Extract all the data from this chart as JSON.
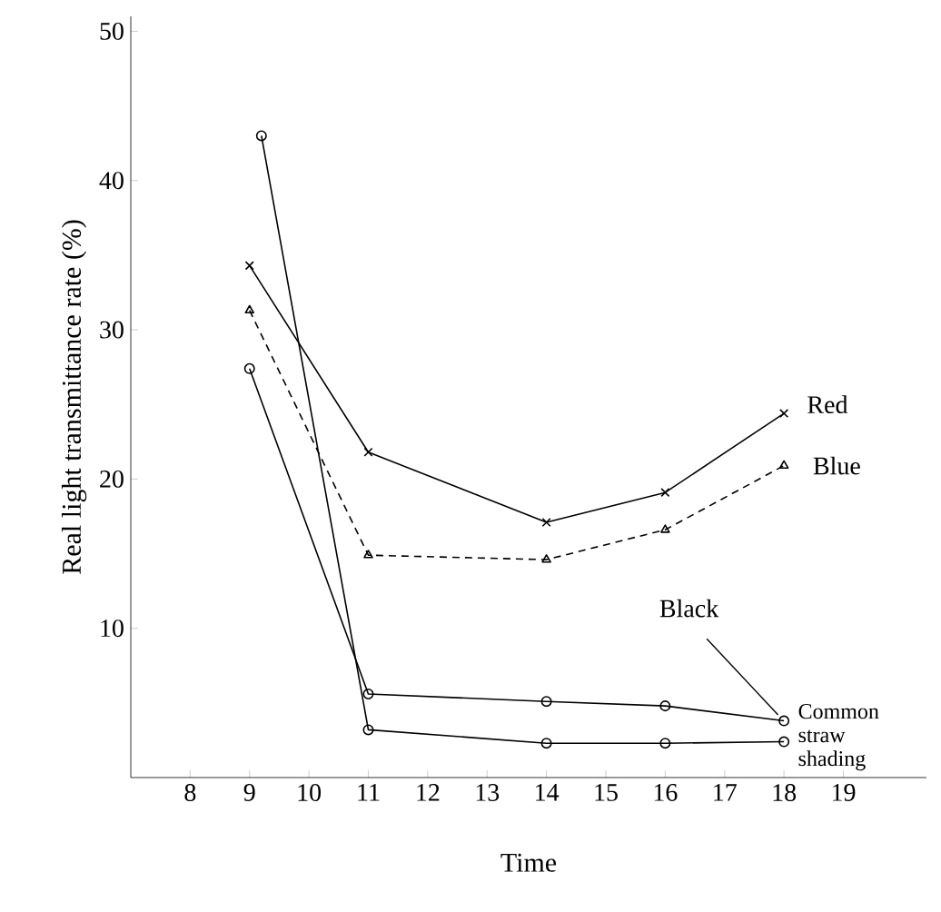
{
  "chart_data": {
    "type": "line",
    "xlabel": "Time",
    "ylabel": "Real light transmittance rate (%)",
    "xlim": [
      7,
      20.4
    ],
    "ylim": [
      0,
      51
    ],
    "xticks": [
      8,
      9,
      10,
      11,
      12,
      13,
      14,
      15,
      16,
      17,
      18,
      19
    ],
    "yticks": [
      10,
      20,
      30,
      40,
      50
    ],
    "grid": false,
    "legend": false,
    "series": [
      {
        "name": "Red",
        "color": "#000000",
        "marker": "cross",
        "line_style": "solid",
        "x": [
          9,
          11,
          14,
          16,
          18
        ],
        "values": [
          34.3,
          21.8,
          17.1,
          19.1,
          24.4
        ]
      },
      {
        "name": "Blue",
        "color": "#000000",
        "marker": "triangle",
        "line_style": "dashed",
        "x": [
          9,
          11,
          14,
          16,
          18
        ],
        "values": [
          31.3,
          14.9,
          14.6,
          16.6,
          20.9
        ]
      },
      {
        "name": "Black",
        "color": "#000000",
        "marker": "circle",
        "line_style": "solid",
        "x": [
          9,
          11,
          14,
          16,
          18
        ],
        "values": [
          27.4,
          5.6,
          5.1,
          4.8,
          3.8
        ]
      },
      {
        "name": "Common straw shading",
        "color": "#000000",
        "marker": "circle",
        "line_style": "solid",
        "x": [
          9.2,
          11,
          14,
          16,
          18
        ],
        "values": [
          43,
          3.2,
          2.3,
          2.3,
          2.4
        ]
      }
    ]
  }
}
